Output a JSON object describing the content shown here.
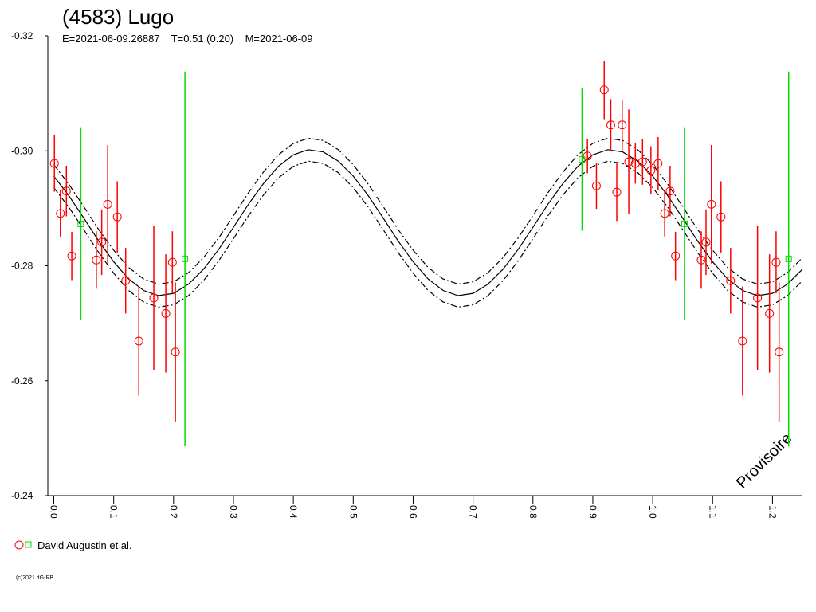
{
  "chart_data": {
    "type": "lightcurve",
    "title": "(4583) Lugo",
    "subtitle": "E=2021-06-09.26887    T=0.51 (0.20)    M=2021-06-09",
    "watermark": "Provisoire",
    "copyright": "(c)2021 dG-RB",
    "xlim": [
      -0.01,
      1.25
    ],
    "ylim": [
      -0.32,
      -0.24
    ],
    "invert_y": true,
    "xticks": [
      {
        "value": 0,
        "label": "0.0"
      },
      0.1,
      0.2,
      0.3,
      0.4,
      0.5,
      0.6,
      0.7,
      0.8,
      0.9,
      {
        "value": 1,
        "label": "1.0"
      },
      1.1,
      1.2
    ],
    "yticks": [
      -0.32,
      {
        "value": -0.3,
        "label": "-0.30"
      },
      -0.28,
      -0.26,
      -0.24
    ],
    "series": [
      {
        "name": "David Augustin et al.",
        "color": "#ff0000",
        "marker": "circle",
        "x": [
          0.001,
          0.011,
          0.021,
          0.03,
          0.071,
          0.08,
          0.09,
          0.106,
          0.12,
          0.142,
          0.167,
          0.187,
          0.198,
          0.203,
          0.891,
          0.906,
          0.919,
          0.93,
          0.94,
          0.949,
          0.96,
          0.971,
          0.983,
          0.997,
          1.009,
          1.02,
          1.029,
          1.038,
          1.081,
          1.089,
          1.098,
          1.114,
          1.13,
          1.15,
          1.175,
          1.195,
          1.206,
          1.211
        ],
        "values": [
          -0.2978,
          -0.2891,
          -0.293,
          -0.2817,
          -0.281,
          -0.2841,
          -0.2907,
          -0.2885,
          -0.2774,
          -0.2669,
          -0.2744,
          -0.2717,
          -0.2806,
          -0.265,
          -0.2991,
          -0.2939,
          -0.3106,
          -0.3045,
          -0.2928,
          -0.3045,
          -0.2981,
          -0.2978,
          -0.2981,
          -0.2966,
          -0.2978,
          -0.2891,
          -0.293,
          -0.2817,
          -0.281,
          -0.2841,
          -0.2907,
          -0.2885,
          -0.2774,
          -0.2669,
          -0.2744,
          -0.2717,
          -0.2806,
          -0.265
        ],
        "errors": [
          0.0049,
          0.004,
          0.0044,
          0.0042,
          0.005,
          0.0057,
          0.0103,
          0.0062,
          0.0057,
          0.0095,
          0.0125,
          0.0103,
          0.0054,
          0.0121,
          0.003,
          0.004,
          0.0051,
          0.0045,
          0.005,
          0.0044,
          0.0091,
          0.0035,
          0.004,
          0.0042,
          0.0046,
          0.004,
          0.0044,
          0.0042,
          0.005,
          0.0057,
          0.0103,
          0.0062,
          0.0057,
          0.0095,
          0.0125,
          0.0103,
          0.0054,
          0.0121
        ]
      },
      {
        "color": "#00dd00",
        "marker": "square",
        "x": [
          0.045,
          0.219,
          0.882,
          1.053,
          1.227
        ],
        "values": [
          -0.2873,
          -0.2812,
          -0.2985,
          -0.2873,
          -0.2812
        ],
        "errors": [
          0.0168,
          0.0326,
          0.0124,
          0.0168,
          0.0326
        ]
      }
    ],
    "curve_x": [
      0,
      0.025,
      0.05,
      0.075,
      0.1,
      0.125,
      0.15,
      0.175,
      0.2,
      0.225,
      0.25,
      0.275,
      0.3,
      0.325,
      0.35,
      0.375,
      0.4,
      0.425,
      0.45,
      0.475,
      0.5,
      0.525,
      0.55,
      0.575,
      0.6,
      0.625,
      0.65,
      0.675,
      0.7,
      0.725,
      0.75,
      0.775,
      0.8,
      0.825,
      0.85,
      0.875,
      0.9,
      0.925,
      0.95,
      0.975,
      1,
      1.025,
      1.05,
      1.075,
      1.1,
      1.125,
      1.15,
      1.175,
      1.2,
      1.225,
      1.25
    ],
    "curves": [
      {
        "style": "solid",
        "color": "#000000",
        "values": [
          -0.2956,
          -0.2922,
          -0.2883,
          -0.2843,
          -0.2807,
          -0.2777,
          -0.2757,
          -0.2748,
          -0.2752,
          -0.2768,
          -0.2794,
          -0.2828,
          -0.2867,
          -0.2907,
          -0.2943,
          -0.2973,
          -0.2993,
          -0.3002,
          -0.2998,
          -0.2982,
          -0.2956,
          -0.2922,
          -0.2883,
          -0.2843,
          -0.2807,
          -0.2777,
          -0.2757,
          -0.2748,
          -0.2752,
          -0.2768,
          -0.2794,
          -0.2828,
          -0.2867,
          -0.2907,
          -0.2943,
          -0.2973,
          -0.2993,
          -0.3002,
          -0.2998,
          -0.2982,
          -0.2956,
          -0.2922,
          -0.2883,
          -0.2843,
          -0.2807,
          -0.2777,
          -0.2757,
          -0.2748,
          -0.2752,
          -0.2768,
          -0.2794
        ]
      },
      {
        "style": "dashdot",
        "color": "#000000",
        "values": [
          -0.2976,
          -0.2942,
          -0.2903,
          -0.2863,
          -0.2827,
          -0.2797,
          -0.2777,
          -0.2768,
          -0.2772,
          -0.2788,
          -0.2814,
          -0.2848,
          -0.2887,
          -0.2927,
          -0.2963,
          -0.2993,
          -0.3013,
          -0.3022,
          -0.3018,
          -0.3002,
          -0.2976,
          -0.2942,
          -0.2903,
          -0.2863,
          -0.2827,
          -0.2797,
          -0.2777,
          -0.2768,
          -0.2772,
          -0.2788,
          -0.2814,
          -0.2848,
          -0.2887,
          -0.2927,
          -0.2963,
          -0.2993,
          -0.3013,
          -0.3022,
          -0.3018,
          -0.3002,
          -0.2976,
          -0.2942,
          -0.2903,
          -0.2863,
          -0.2827,
          -0.2797,
          -0.2777,
          -0.2768,
          -0.2772,
          -0.2788,
          -0.2814
        ]
      },
      {
        "style": "dashdot",
        "color": "#000000",
        "values": [
          -0.2936,
          -0.2902,
          -0.2863,
          -0.2823,
          -0.2787,
          -0.2757,
          -0.2737,
          -0.2728,
          -0.2732,
          -0.2748,
          -0.2774,
          -0.2808,
          -0.2847,
          -0.2887,
          -0.2923,
          -0.2953,
          -0.2973,
          -0.2982,
          -0.2978,
          -0.2962,
          -0.2936,
          -0.2902,
          -0.2863,
          -0.2823,
          -0.2787,
          -0.2757,
          -0.2737,
          -0.2728,
          -0.2732,
          -0.2748,
          -0.2774,
          -0.2808,
          -0.2847,
          -0.2887,
          -0.2923,
          -0.2953,
          -0.2973,
          -0.2982,
          -0.2978,
          -0.2962,
          -0.2936,
          -0.2902,
          -0.2863,
          -0.2823,
          -0.2787,
          -0.2757,
          -0.2737,
          -0.2728,
          -0.2732,
          -0.2748,
          -0.2774
        ]
      }
    ]
  }
}
